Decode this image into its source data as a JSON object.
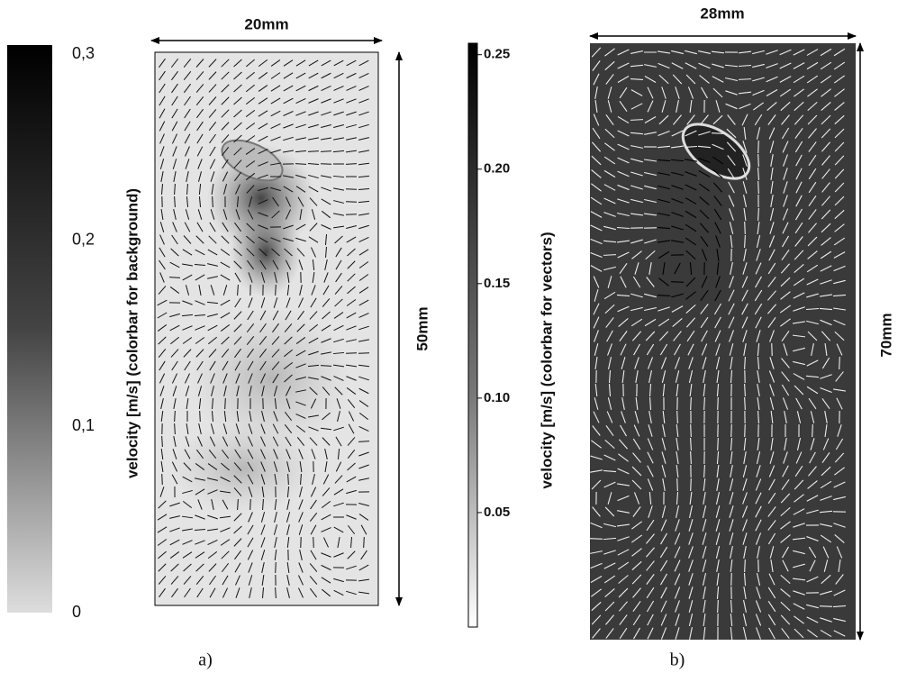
{
  "figure": {
    "panels": [
      {
        "label": "a)",
        "width_label": "20mm",
        "height_label": "50mm",
        "colorbar": {
          "title": "velocity [m/s] (colorbar for background)",
          "ylim": [
            0,
            0.305
          ],
          "yticks": [
            0,
            {
              "value": 0.1,
              "label": "0,1"
            },
            {
              "value": 0.2,
              "label": "0,2"
            },
            {
              "value": 0.3,
              "label": "0,3"
            }
          ]
        }
      },
      {
        "label": "b)",
        "width_label": "28mm",
        "height_label": "70mm",
        "colorbar": {
          "title": "velocity [m/s] (colorbar for vectors)",
          "ylim": [
            0,
            0.255
          ],
          "yticks": [
            0.05,
            {
              "value": 0.1,
              "label": "0.10"
            },
            0.15,
            {
              "value": 0.2,
              "label": "0.20"
            },
            0.25
          ]
        }
      }
    ]
  }
}
